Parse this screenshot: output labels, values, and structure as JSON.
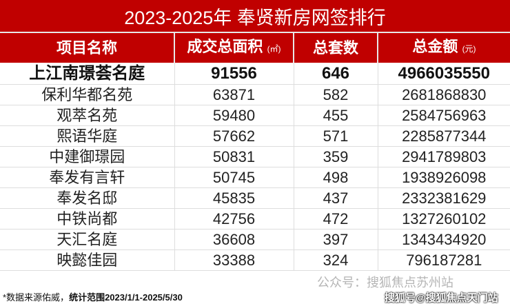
{
  "title": "2023-2025年 奉贤新房网签排行",
  "headers": {
    "name": "项目名称",
    "area": "成交总面积",
    "area_unit": "(㎡)",
    "units": "总套数",
    "amount": "总金额",
    "amount_unit": "(元)"
  },
  "rows": [
    {
      "name": "上江南璟荟名庭",
      "area": "91556",
      "units": "646",
      "amount": "4966035550"
    },
    {
      "name": "保利华都名苑",
      "area": "63871",
      "units": "582",
      "amount": "2681868830"
    },
    {
      "name": "观萃名苑",
      "area": "59480",
      "units": "455",
      "amount": "2584756963"
    },
    {
      "name": "熙语华庭",
      "area": "57662",
      "units": "571",
      "amount": "2285877344"
    },
    {
      "name": "中建御璟园",
      "area": "50831",
      "units": "359",
      "amount": "2941789803"
    },
    {
      "name": "奉发有言轩",
      "area": "50745",
      "units": "498",
      "amount": "1938926098"
    },
    {
      "name": "奉发名邸",
      "area": "45835",
      "units": "437",
      "amount": "2332381629"
    },
    {
      "name": "中铁尚都",
      "area": "42756",
      "units": "472",
      "amount": "1327260102"
    },
    {
      "name": "天汇名庭",
      "area": "36608",
      "units": "397",
      "amount": "1343434920"
    },
    {
      "name": "映懿佳园",
      "area": "33388",
      "units": "324",
      "amount": "796187281"
    }
  ],
  "footer": {
    "source": "*数据来源佑威，",
    "range": "统计范围2023/1/1-2025/5/30"
  },
  "watermark": {
    "wechat": "公众号：搜狐焦点苏州站",
    "sohu": "搜狐号@搜狐焦点天门站"
  }
}
